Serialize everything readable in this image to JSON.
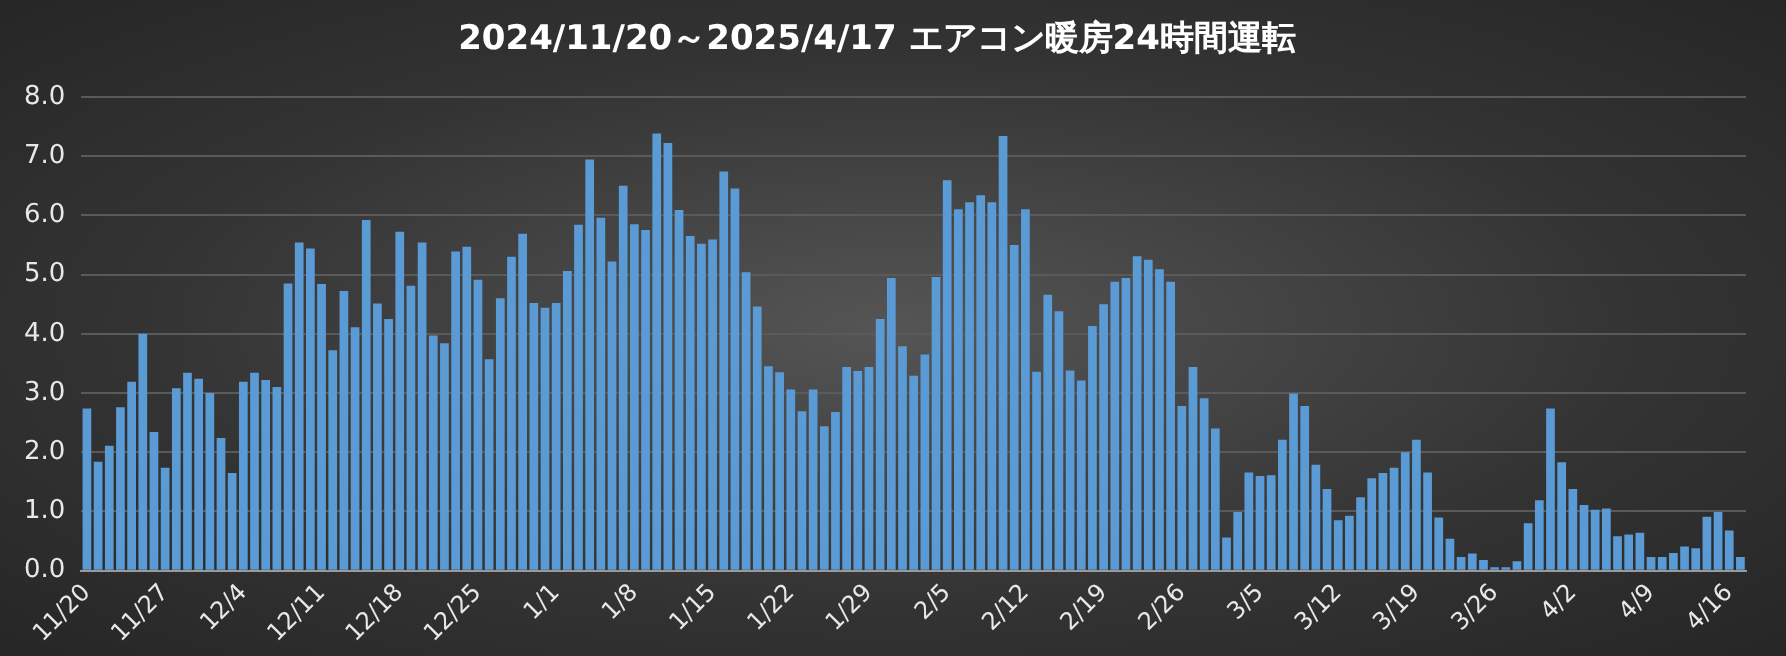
{
  "chart_data": {
    "type": "bar",
    "title": "2024/11/20～2025/4/17 エアコン暖房24時間運転",
    "categories": [
      "11/20",
      null,
      null,
      null,
      null,
      null,
      null,
      "11/27",
      null,
      null,
      null,
      null,
      null,
      null,
      "12/4",
      null,
      null,
      null,
      null,
      null,
      null,
      "12/11",
      null,
      null,
      null,
      null,
      null,
      null,
      "12/18",
      null,
      null,
      null,
      null,
      null,
      null,
      "12/25",
      null,
      null,
      null,
      null,
      null,
      null,
      "1/1",
      null,
      null,
      null,
      null,
      null,
      null,
      "1/8",
      null,
      null,
      null,
      null,
      null,
      null,
      "1/15",
      null,
      null,
      null,
      null,
      null,
      null,
      "1/22",
      null,
      null,
      null,
      null,
      null,
      null,
      "1/29",
      null,
      null,
      null,
      null,
      null,
      null,
      "2/5",
      null,
      null,
      null,
      null,
      null,
      null,
      "2/12",
      null,
      null,
      null,
      null,
      null,
      null,
      "2/19",
      null,
      null,
      null,
      null,
      null,
      null,
      "2/26",
      null,
      null,
      null,
      null,
      null,
      null,
      "3/5",
      null,
      null,
      null,
      null,
      null,
      null,
      "3/12",
      null,
      null,
      null,
      null,
      null,
      null,
      "3/19",
      null,
      null,
      null,
      null,
      null,
      null,
      "3/26",
      null,
      null,
      null,
      null,
      null,
      null,
      "4/2",
      null,
      null,
      null,
      null,
      null,
      null,
      "4/9",
      null,
      null,
      null,
      null,
      null,
      null,
      "4/16",
      null
    ],
    "values": [
      2.74,
      1.84,
      2.11,
      2.76,
      3.19,
      4.0,
      2.34,
      1.74,
      3.08,
      3.34,
      3.24,
      3.0,
      2.24,
      1.65,
      3.19,
      3.34,
      3.22,
      3.1,
      4.85,
      5.54,
      5.44,
      4.84,
      3.72,
      4.72,
      4.11,
      5.92,
      4.51,
      4.25,
      5.72,
      4.81,
      5.54,
      3.97,
      3.84,
      5.39,
      5.47,
      4.91,
      3.57,
      4.6,
      5.3,
      5.69,
      4.52,
      4.44,
      4.52,
      5.06,
      5.84,
      6.94,
      5.96,
      5.22,
      6.5,
      5.85,
      5.75,
      7.38,
      7.22,
      6.09,
      5.65,
      5.52,
      5.59,
      6.74,
      6.45,
      5.04,
      4.46,
      3.45,
      3.35,
      3.06,
      2.69,
      3.06,
      2.44,
      2.68,
      3.44,
      3.37,
      3.44,
      4.25,
      4.94,
      3.79,
      3.29,
      3.65,
      4.96,
      6.59,
      6.1,
      6.22,
      6.34,
      6.22,
      7.34,
      5.5,
      6.1,
      3.36,
      4.66,
      4.38,
      3.38,
      3.21,
      4.13,
      4.5,
      4.88,
      4.94,
      5.31,
      5.25,
      5.09,
      4.88,
      2.78,
      3.44,
      2.91,
      2.4,
      0.56,
      0.99,
      1.66,
      1.6,
      1.61,
      2.21,
      2.99,
      2.78,
      1.79,
      1.38,
      0.85,
      0.93,
      1.24,
      1.56,
      1.65,
      1.74,
      2.0,
      2.21,
      1.66,
      0.9,
      0.54,
      0.23,
      0.29,
      0.18,
      0.06,
      0.06,
      0.16,
      0.8,
      1.19,
      2.74,
      1.83,
      1.38,
      1.11,
      1.03,
      1.05,
      0.58,
      0.61,
      0.64,
      0.23,
      0.23,
      0.3,
      0.41,
      0.38,
      0.91,
      0.99,
      0.68,
      0.23
    ],
    "color": "#5b9bd5",
    "ylim": [
      0,
      8
    ],
    "yticks": [
      {
        "value": 0,
        "label": "0.0"
      },
      {
        "value": 1,
        "label": "1.0"
      },
      {
        "value": 2,
        "label": "2.0"
      },
      {
        "value": 3,
        "label": "3.0"
      },
      {
        "value": 4,
        "label": "4.0"
      },
      {
        "value": 5,
        "label": "5.0"
      },
      {
        "value": 6,
        "label": "6.0"
      },
      {
        "value": 7,
        "label": "7.0"
      },
      {
        "value": 8,
        "label": "8.0"
      }
    ],
    "grid": "y"
  }
}
